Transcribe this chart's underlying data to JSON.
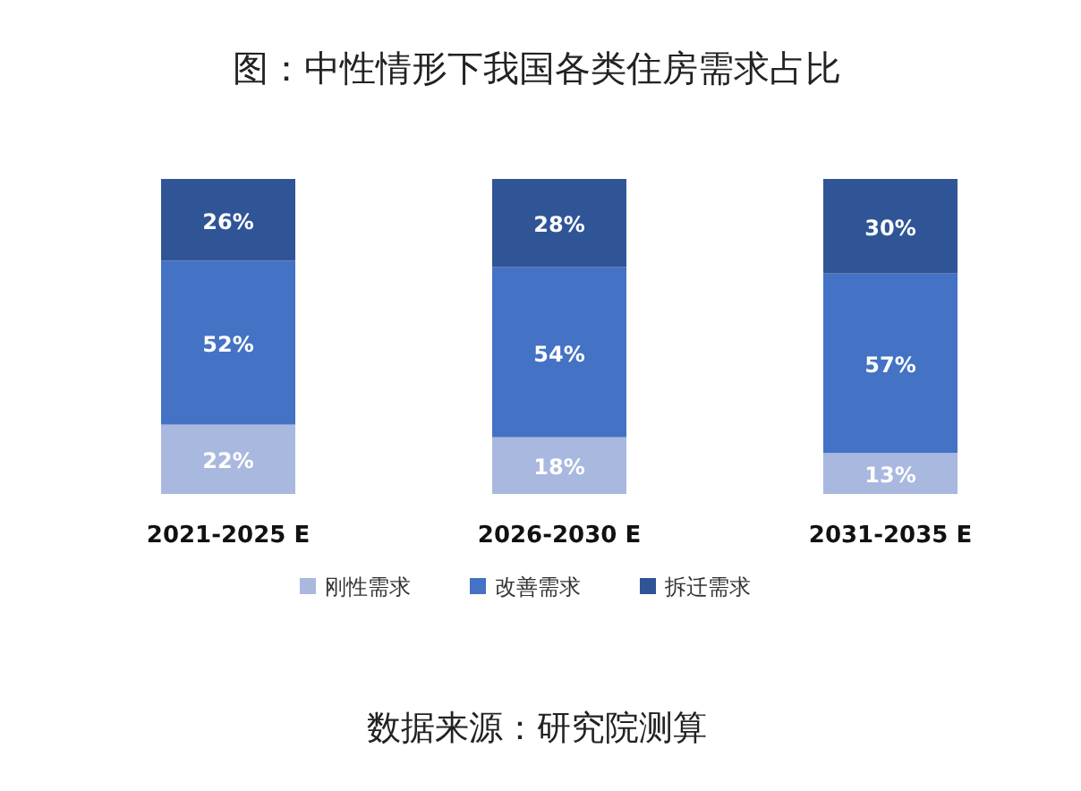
{
  "chart_data": {
    "type": "bar",
    "stacked": true,
    "title": "图：中性情形下我国各类住房需求占比",
    "categories": [
      "2021-2025  E",
      "2026-2030  E",
      "2031-2035  E"
    ],
    "series": [
      {
        "name": "刚性需求",
        "color": "#a9b8df",
        "values": [
          22,
          18,
          13
        ],
        "value_labels": [
          "22%",
          "18%",
          "13%"
        ]
      },
      {
        "name": "改善需求",
        "color": "#4472c4",
        "values": [
          52,
          54,
          57
        ],
        "value_labels": [
          "52%",
          "54%",
          "57%"
        ]
      },
      {
        "name": "拆迁需求",
        "color": "#2f5597",
        "values": [
          26,
          28,
          30
        ],
        "value_labels": [
          "26%",
          "28%",
          "30%"
        ]
      }
    ],
    "legend": "bottom",
    "annotations": [
      "数据来源：研究院测算"
    ]
  }
}
